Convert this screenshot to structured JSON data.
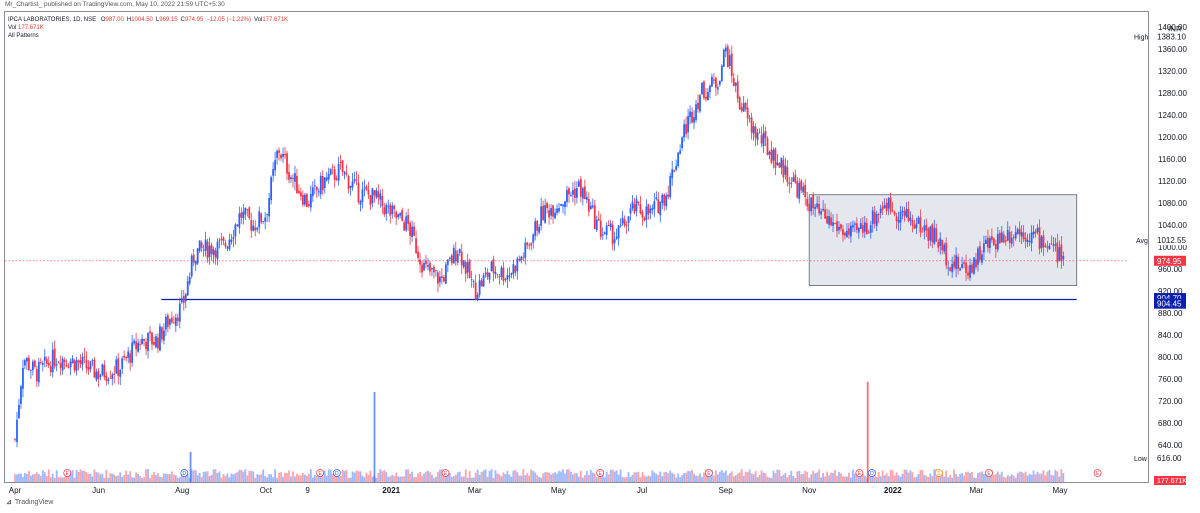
{
  "header": {
    "credit": "Mr_Chartist_ published on TradingView.com, May 10, 2022 21:59 UTC+5:30"
  },
  "legend": {
    "symbol": "IPCA LABORATORIES, 1D, NSE",
    "ohlc": [
      {
        "label": "O",
        "value": "987.00"
      },
      {
        "label": "H",
        "value": "1004.50"
      },
      {
        "label": "L",
        "value": "969.15"
      },
      {
        "label": "C",
        "value": "974.95"
      },
      {
        "label": "",
        "value": "−12.05 (−1.22%)"
      },
      {
        "label": "Vol",
        "value": "177.671K"
      }
    ],
    "volume_row_label": "Vol",
    "volume_row_value": "177.671K",
    "indicator": "All Patterns"
  },
  "footer": {
    "brand": "TradingView"
  },
  "colors": {
    "up": "#2962ff",
    "down": "#f23645",
    "support_line": "#0d1fae",
    "box_fill": "#e0e3eb",
    "price_line": "#f23645"
  },
  "chart_data": {
    "type": "candlestick",
    "currency": "INR",
    "ylim": [
      600,
      1400
    ],
    "y_ticks": [
      640,
      680,
      720,
      760,
      800,
      840,
      880,
      920,
      960,
      1000,
      1040,
      1080,
      1120,
      1160,
      1200,
      1240,
      1280,
      1320,
      1360,
      1400
    ],
    "y_tick_labels": [
      "640.00",
      "680.00",
      "720.00",
      "760.00",
      "800.00",
      "840.00",
      "880.00",
      "920.00",
      "960.00",
      "1000.00",
      "1040.00",
      "1080.00",
      "1120.00",
      "1160.00",
      "1200.00",
      "1240.00",
      "1280.00",
      "1320.00",
      "1360.00",
      "1400.00"
    ],
    "x_ticks": [
      {
        "label": "Apr",
        "t": 0.0
      },
      {
        "label": "Jun",
        "t": 2.0
      },
      {
        "label": "Aug",
        "t": 4.0
      },
      {
        "label": "Oct",
        "t": 6.0
      },
      {
        "label": "9",
        "t": 7.0
      },
      {
        "label": "2021",
        "t": 9.0
      },
      {
        "label": "Mar",
        "t": 11.0
      },
      {
        "label": "May",
        "t": 13.0
      },
      {
        "label": "Jul",
        "t": 15.0
      },
      {
        "label": "Sep",
        "t": 17.0
      },
      {
        "label": "Nov",
        "t": 19.0
      },
      {
        "label": "2022",
        "t": 21.0
      },
      {
        "label": "Mar",
        "t": 23.0
      },
      {
        "label": "May",
        "t": 25.0
      }
    ],
    "price_path_months": [
      0,
      0.2,
      0.5,
      1,
      1.5,
      2,
      2.5,
      3,
      3.4,
      3.7,
      4,
      4.3,
      4.7,
      5,
      5.4,
      5.7,
      6,
      6.3,
      6.6,
      7,
      7.4,
      7.8,
      8.2,
      8.6,
      9,
      9.4,
      9.8,
      10.2,
      10.6,
      11,
      11.4,
      11.8,
      12.2,
      12.6,
      13,
      13.5,
      14,
      14.4,
      14.8,
      15.2,
      15.6,
      16,
      16.4,
      16.8,
      17,
      17.3,
      17.6,
      18,
      18.4,
      18.8,
      19.2,
      19.6,
      20,
      20.4,
      20.8,
      21.2,
      21.6,
      22,
      22.4,
      22.8,
      23.2,
      23.6,
      24,
      24.4,
      24.8,
      25.1
    ],
    "price_path_values": [
      650,
      800,
      770,
      800,
      790,
      770,
      780,
      830,
      830,
      870,
      890,
      990,
      1000,
      1000,
      1060,
      1040,
      1060,
      1180,
      1130,
      1080,
      1120,
      1140,
      1100,
      1090,
      1060,
      1040,
      960,
      940,
      1000,
      920,
      960,
      950,
      990,
      1060,
      1080,
      1110,
      1030,
      1020,
      1070,
      1060,
      1100,
      1210,
      1280,
      1300,
      1360,
      1270,
      1220,
      1180,
      1140,
      1100,
      1060,
      1040,
      1020,
      1040,
      1080,
      1060,
      1040,
      1020,
      970,
      960,
      1000,
      1020,
      1030,
      1020,
      1000,
      975
    ],
    "last": {
      "label": "974.95",
      "value": 974.95
    },
    "high": {
      "label": "High",
      "value": "1383.10",
      "y": 1383.1
    },
    "low": {
      "label": "Low",
      "value": "616.00",
      "y": 616
    },
    "avg": {
      "label": "Avg",
      "value": "1012.55",
      "y": 1012.55
    },
    "support": [
      {
        "label": "904.70",
        "y": 904.7
      },
      {
        "label": "904.45",
        "y": 904.45
      }
    ],
    "volume_label": "177.671K",
    "box": {
      "x0": 19.0,
      "x1": 25.4,
      "y0": 930,
      "y1": 1095
    },
    "support_line": {
      "x0": 3.5,
      "x1": 25.4,
      "y": 904.6
    },
    "volume_spikes": [
      {
        "t": 8.6,
        "v": 0.9
      },
      {
        "t": 20.4,
        "v": 1.0
      },
      {
        "t": 4.2,
        "v": 0.3
      }
    ],
    "event_markers": [
      {
        "t": 1.25,
        "kind": "E"
      },
      {
        "t": 4.05,
        "kind": "D"
      },
      {
        "t": 7.3,
        "kind": "E"
      },
      {
        "t": 7.7,
        "kind": "D"
      },
      {
        "t": 10.3,
        "kind": "E"
      },
      {
        "t": 14.0,
        "kind": "E"
      },
      {
        "t": 16.6,
        "kind": "E"
      },
      {
        "t": 20.2,
        "kind": "E"
      },
      {
        "t": 20.5,
        "kind": "D"
      },
      {
        "t": 22.1,
        "kind": "S"
      },
      {
        "t": 23.3,
        "kind": "E"
      },
      {
        "t": 25.9,
        "kind": "E"
      }
    ]
  }
}
